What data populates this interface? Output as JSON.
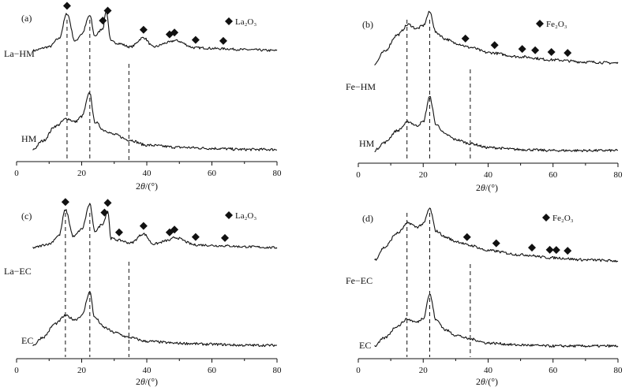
{
  "figure": {
    "xaxis": {
      "ticks": [
        0,
        20,
        40,
        60,
        80
      ],
      "xlim": [
        0,
        80
      ],
      "label_prefix": "2",
      "label_theta": "θ",
      "label_suffix": "/(°)"
    },
    "panels": [
      {
        "panel_label": "(a)",
        "legend": {
          "marker": "◆",
          "text": "La₂O₃"
        },
        "series": [
          {
            "name": "La−HM",
            "markers": [
              15.5,
              26.5,
              28,
              39,
              47,
              48.5,
              55,
              63.5
            ]
          },
          {
            "name": "HM",
            "markers": []
          }
        ],
        "dashed_lines": [
          15.5,
          22.5,
          34.5
        ]
      },
      {
        "panel_label": "(b)",
        "legend": {
          "marker": "◆",
          "text": "Fe₂O₃"
        },
        "series": [
          {
            "name": "Fe−HM",
            "markers": [
              33,
              42,
              50.5,
              54.5,
              59.5,
              64.5
            ]
          },
          {
            "name": "HM",
            "markers": []
          }
        ],
        "dashed_lines": [
          15,
          22,
          34.5
        ]
      },
      {
        "panel_label": "(c)",
        "legend": {
          "marker": "◆",
          "text": "La₂O₃"
        },
        "series": [
          {
            "name": "La−EC",
            "markers": [
              15,
              27,
              28,
              31.5,
              39,
              47,
              48.5,
              55,
              64
            ]
          },
          {
            "name": "EC",
            "markers": []
          }
        ],
        "dashed_lines": [
          15,
          22.5,
          34.5
        ]
      },
      {
        "panel_label": "(d)",
        "legend": {
          "marker": "◆",
          "text": "Fe₂O₃"
        },
        "series": [
          {
            "name": "Fe−EC",
            "markers": [
              33.5,
              42.5,
              53.5,
              59,
              61,
              64.5
            ]
          },
          {
            "name": "EC",
            "markers": []
          }
        ],
        "dashed_lines": [
          15,
          22,
          34.5
        ]
      }
    ]
  },
  "chart_data": [
    {
      "type": "line",
      "xlabel": "2θ/(°)",
      "ylabel": "",
      "xlim": [
        0,
        80
      ],
      "series": [
        {
          "name": "La−HM",
          "x": [
            5,
            10,
            13,
            15.5,
            18,
            20,
            22.5,
            24,
            26.5,
            27.5,
            29,
            31,
            35,
            39,
            42,
            47,
            48.5,
            55,
            63.5,
            70,
            80
          ],
          "y": [
            0.52,
            0.56,
            0.65,
            0.92,
            0.62,
            0.7,
            0.9,
            0.68,
            0.76,
            0.95,
            0.62,
            0.6,
            0.56,
            0.66,
            0.56,
            0.61,
            0.63,
            0.55,
            0.54,
            0.53,
            0.52
          ]
        },
        {
          "name": "HM",
          "x": [
            5,
            8,
            12,
            15.5,
            18,
            20,
            22.5,
            24,
            27,
            30,
            34.5,
            40,
            50,
            60,
            70,
            80
          ],
          "y": [
            0.04,
            0.12,
            0.26,
            0.33,
            0.3,
            0.35,
            0.57,
            0.3,
            0.22,
            0.18,
            0.13,
            0.08,
            0.06,
            0.05,
            0.04,
            0.04
          ]
        }
      ]
    },
    {
      "type": "line",
      "xlabel": "2θ/(°)",
      "ylabel": "",
      "xlim": [
        0,
        80
      ],
      "series": [
        {
          "name": "Fe−HM",
          "x": [
            5,
            8,
            12,
            15.5,
            18,
            20,
            22,
            24,
            27,
            30,
            34.5,
            40,
            50,
            60,
            70,
            80
          ],
          "y": [
            0.46,
            0.58,
            0.74,
            0.84,
            0.8,
            0.83,
            0.96,
            0.76,
            0.7,
            0.66,
            0.62,
            0.57,
            0.53,
            0.5,
            0.48,
            0.47
          ]
        },
        {
          "name": "HM",
          "x": [
            5,
            8,
            12,
            15.5,
            18,
            20,
            22,
            24,
            27,
            30,
            34.5,
            40,
            50,
            60,
            70,
            80
          ],
          "y": [
            0.04,
            0.12,
            0.24,
            0.33,
            0.29,
            0.33,
            0.58,
            0.3,
            0.2,
            0.15,
            0.11,
            0.07,
            0.05,
            0.04,
            0.04,
            0.04
          ]
        }
      ]
    },
    {
      "type": "line",
      "xlabel": "2θ/(°)",
      "ylabel": "",
      "xlim": [
        0,
        80
      ],
      "series": [
        {
          "name": "La−EC",
          "x": [
            5,
            10,
            13,
            15,
            17.5,
            20,
            22.5,
            24,
            26.5,
            28,
            29,
            31.5,
            35,
            39,
            42,
            47,
            48.5,
            55,
            64,
            70,
            80
          ],
          "y": [
            0.52,
            0.56,
            0.65,
            0.93,
            0.64,
            0.72,
            0.99,
            0.7,
            0.78,
            0.92,
            0.62,
            0.6,
            0.57,
            0.67,
            0.56,
            0.6,
            0.63,
            0.55,
            0.54,
            0.53,
            0.52
          ]
        },
        {
          "name": "EC",
          "x": [
            5,
            8,
            12,
            15,
            18,
            20,
            22.5,
            24,
            27,
            30,
            34.5,
            40,
            50,
            60,
            70,
            80
          ],
          "y": [
            0.04,
            0.12,
            0.26,
            0.34,
            0.3,
            0.34,
            0.58,
            0.32,
            0.22,
            0.17,
            0.12,
            0.08,
            0.06,
            0.05,
            0.04,
            0.04
          ]
        }
      ]
    },
    {
      "type": "line",
      "xlabel": "2θ/(°)",
      "ylabel": "",
      "xlim": [
        0,
        80
      ],
      "series": [
        {
          "name": "Fe−EC",
          "x": [
            5,
            8,
            12,
            15.5,
            18,
            20,
            22,
            24,
            27,
            30,
            34.5,
            40,
            50,
            60,
            70,
            80
          ],
          "y": [
            0.48,
            0.6,
            0.74,
            0.84,
            0.8,
            0.83,
            0.98,
            0.76,
            0.7,
            0.66,
            0.62,
            0.57,
            0.53,
            0.5,
            0.48,
            0.47
          ]
        },
        {
          "name": "EC",
          "x": [
            5,
            8,
            12,
            15,
            18,
            20,
            22,
            24,
            27,
            30,
            34.5,
            40,
            50,
            60,
            70,
            80
          ],
          "y": [
            0.04,
            0.12,
            0.24,
            0.31,
            0.28,
            0.32,
            0.56,
            0.3,
            0.2,
            0.15,
            0.11,
            0.07,
            0.05,
            0.04,
            0.04,
            0.04
          ]
        }
      ]
    }
  ]
}
